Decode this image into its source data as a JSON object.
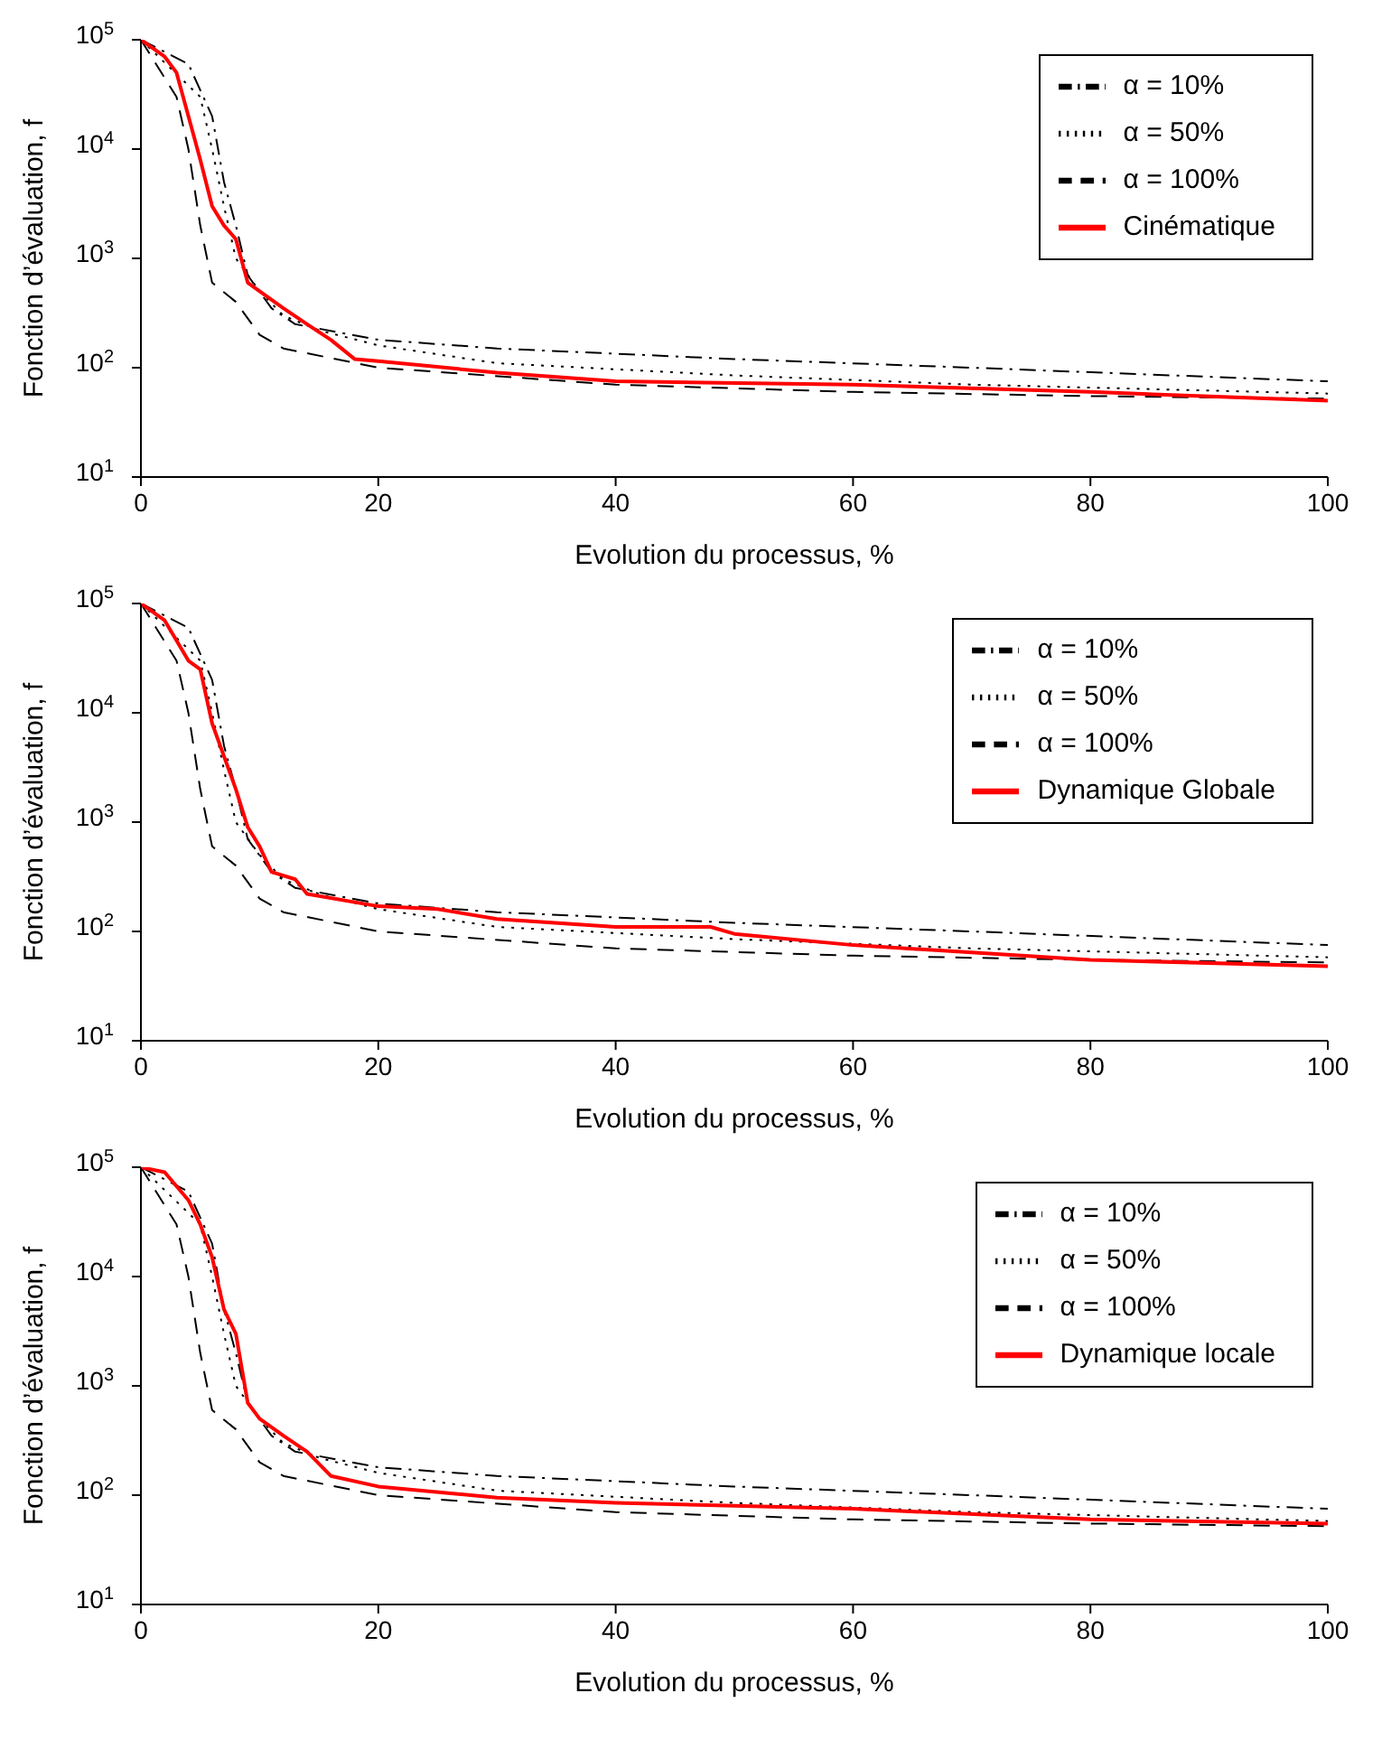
{
  "chart_data": [
    {
      "type": "line",
      "xlabel": "Evolution du processus, %",
      "ylabel": "Fonction d’évaluation, f",
      "xlim": [
        0,
        100
      ],
      "xticks": [
        0,
        20,
        40,
        60,
        80,
        100
      ],
      "ylim": [
        10,
        100000
      ],
      "yticks": [
        {
          "value": 10,
          "label": "10$^{1}$"
        },
        {
          "value": 100,
          "label": "10$^{2}$"
        },
        {
          "value": 1000,
          "label": "10$^{3}$"
        },
        {
          "value": 10000,
          "label": "10$^{4}$"
        },
        {
          "value": 100000,
          "label": "10$^{5}$"
        }
      ],
      "log": "y",
      "grid": false,
      "legend": "top right",
      "series": [
        {
          "name": "α = 10%",
          "color": "#000000",
          "line_style": "dashdot",
          "x": [
            0,
            4,
            6,
            7,
            8,
            9,
            11,
            13,
            20,
            30,
            50,
            70,
            100
          ],
          "values": [
            100000,
            60000,
            20000,
            5000,
            2000,
            700,
            350,
            250,
            180,
            150,
            120,
            100,
            75
          ]
        },
        {
          "name": "α = 50%",
          "color": "#000000",
          "line_style": "dotted",
          "x": [
            0,
            5,
            6,
            7,
            8,
            10,
            12,
            15,
            20,
            30,
            50,
            70,
            100
          ],
          "values": [
            100000,
            30000,
            10000,
            3000,
            1000,
            500,
            300,
            220,
            160,
            110,
            85,
            70,
            58
          ]
        },
        {
          "name": "α = 100%",
          "color": "#000000",
          "line_style": "dashed",
          "x": [
            0,
            3,
            4,
            5,
            6,
            8,
            10,
            12,
            20,
            40,
            60,
            80,
            100
          ],
          "values": [
            100000,
            30000,
            10000,
            2000,
            600,
            400,
            200,
            150,
            100,
            70,
            60,
            55,
            52
          ]
        },
        {
          "name": "Cinématique",
          "color": "#ff0000",
          "line_style": "solid",
          "x": [
            0,
            2,
            3,
            4,
            5,
            6,
            7,
            8,
            9,
            10,
            12,
            14,
            16,
            18,
            20,
            30,
            40,
            60,
            80,
            100
          ],
          "values": [
            100000,
            70000,
            50000,
            20000,
            8000,
            3000,
            2000,
            1500,
            600,
            500,
            350,
            250,
            180,
            120,
            115,
            90,
            75,
            70,
            60,
            50
          ]
        }
      ]
    },
    {
      "type": "line",
      "xlabel": "Evolution du processus, %",
      "ylabel": "Fonction d’évaluation, f",
      "xlim": [
        0,
        100
      ],
      "xticks": [
        0,
        20,
        40,
        60,
        80,
        100
      ],
      "ylim": [
        10,
        100000
      ],
      "yticks": [
        {
          "value": 10,
          "label": "10$^{1}$"
        },
        {
          "value": 100,
          "label": "10$^{2}$"
        },
        {
          "value": 1000,
          "label": "10$^{3}$"
        },
        {
          "value": 10000,
          "label": "10$^{4}$"
        },
        {
          "value": 100000,
          "label": "10$^{5}$"
        }
      ],
      "log": "y",
      "grid": false,
      "legend": "top right",
      "series": [
        {
          "name": "α = 10%",
          "color": "#000000",
          "line_style": "dashdot",
          "x": [
            0,
            4,
            6,
            7,
            8,
            9,
            11,
            13,
            20,
            30,
            50,
            70,
            100
          ],
          "values": [
            100000,
            60000,
            20000,
            5000,
            2000,
            700,
            350,
            250,
            180,
            150,
            120,
            100,
            75
          ]
        },
        {
          "name": "α = 50%",
          "color": "#000000",
          "line_style": "dotted",
          "x": [
            0,
            5,
            6,
            7,
            8,
            10,
            12,
            15,
            20,
            30,
            50,
            70,
            100
          ],
          "values": [
            100000,
            30000,
            10000,
            3000,
            1000,
            500,
            300,
            220,
            160,
            110,
            85,
            70,
            58
          ]
        },
        {
          "name": "α = 100%",
          "color": "#000000",
          "line_style": "dashed",
          "x": [
            0,
            3,
            4,
            5,
            6,
            8,
            10,
            12,
            20,
            40,
            60,
            80,
            100
          ],
          "values": [
            100000,
            30000,
            10000,
            2000,
            600,
            400,
            200,
            150,
            100,
            70,
            60,
            55,
            52
          ]
        },
        {
          "name": "Dynamique Globale",
          "color": "#ff0000",
          "line_style": "solid",
          "x": [
            0,
            2,
            4,
            5,
            6,
            7,
            8,
            9,
            10,
            11,
            13,
            14,
            20,
            25,
            30,
            40,
            48,
            50,
            60,
            80,
            100
          ],
          "values": [
            100000,
            70000,
            30000,
            25000,
            8000,
            4000,
            2000,
            900,
            600,
            350,
            300,
            220,
            170,
            160,
            130,
            110,
            110,
            95,
            75,
            55,
            48
          ]
        }
      ]
    },
    {
      "type": "line",
      "xlabel": "Evolution du processus, %",
      "ylabel": "Fonction d’évaluation, f",
      "xlim": [
        0,
        100
      ],
      "xticks": [
        0,
        20,
        40,
        60,
        80,
        100
      ],
      "ylim": [
        10,
        100000
      ],
      "yticks": [
        {
          "value": 10,
          "label": "10$^{1}$"
        },
        {
          "value": 100,
          "label": "10$^{2}$"
        },
        {
          "value": 1000,
          "label": "10$^{3}$"
        },
        {
          "value": 10000,
          "label": "10$^{4}$"
        },
        {
          "value": 100000,
          "label": "10$^{5}$"
        }
      ],
      "log": "y",
      "grid": false,
      "legend": "top right",
      "series": [
        {
          "name": "α = 10%",
          "color": "#000000",
          "line_style": "dashdot",
          "x": [
            0,
            4,
            6,
            7,
            8,
            9,
            11,
            13,
            20,
            30,
            50,
            70,
            100
          ],
          "values": [
            100000,
            60000,
            20000,
            5000,
            2000,
            700,
            350,
            250,
            180,
            150,
            120,
            100,
            75
          ]
        },
        {
          "name": "α = 50%",
          "color": "#000000",
          "line_style": "dotted",
          "x": [
            0,
            5,
            6,
            7,
            8,
            10,
            12,
            15,
            20,
            30,
            50,
            70,
            100
          ],
          "values": [
            100000,
            30000,
            10000,
            3000,
            1000,
            500,
            300,
            220,
            160,
            110,
            85,
            70,
            58
          ]
        },
        {
          "name": "α = 100%",
          "color": "#000000",
          "line_style": "dashed",
          "x": [
            0,
            3,
            4,
            5,
            6,
            8,
            10,
            12,
            20,
            40,
            60,
            80,
            100
          ],
          "values": [
            100000,
            30000,
            10000,
            2000,
            600,
            400,
            200,
            150,
            100,
            70,
            60,
            55,
            52
          ]
        },
        {
          "name": "Dynamique locale",
          "color": "#ff0000",
          "line_style": "solid",
          "x": [
            0,
            2,
            4,
            5,
            6,
            7,
            8,
            9,
            10,
            12,
            14,
            16,
            20,
            30,
            40,
            60,
            80,
            100
          ],
          "values": [
            100000,
            90000,
            50000,
            30000,
            15000,
            5000,
            3000,
            700,
            500,
            350,
            250,
            150,
            120,
            95,
            85,
            75,
            60,
            55
          ]
        }
      ]
    }
  ]
}
